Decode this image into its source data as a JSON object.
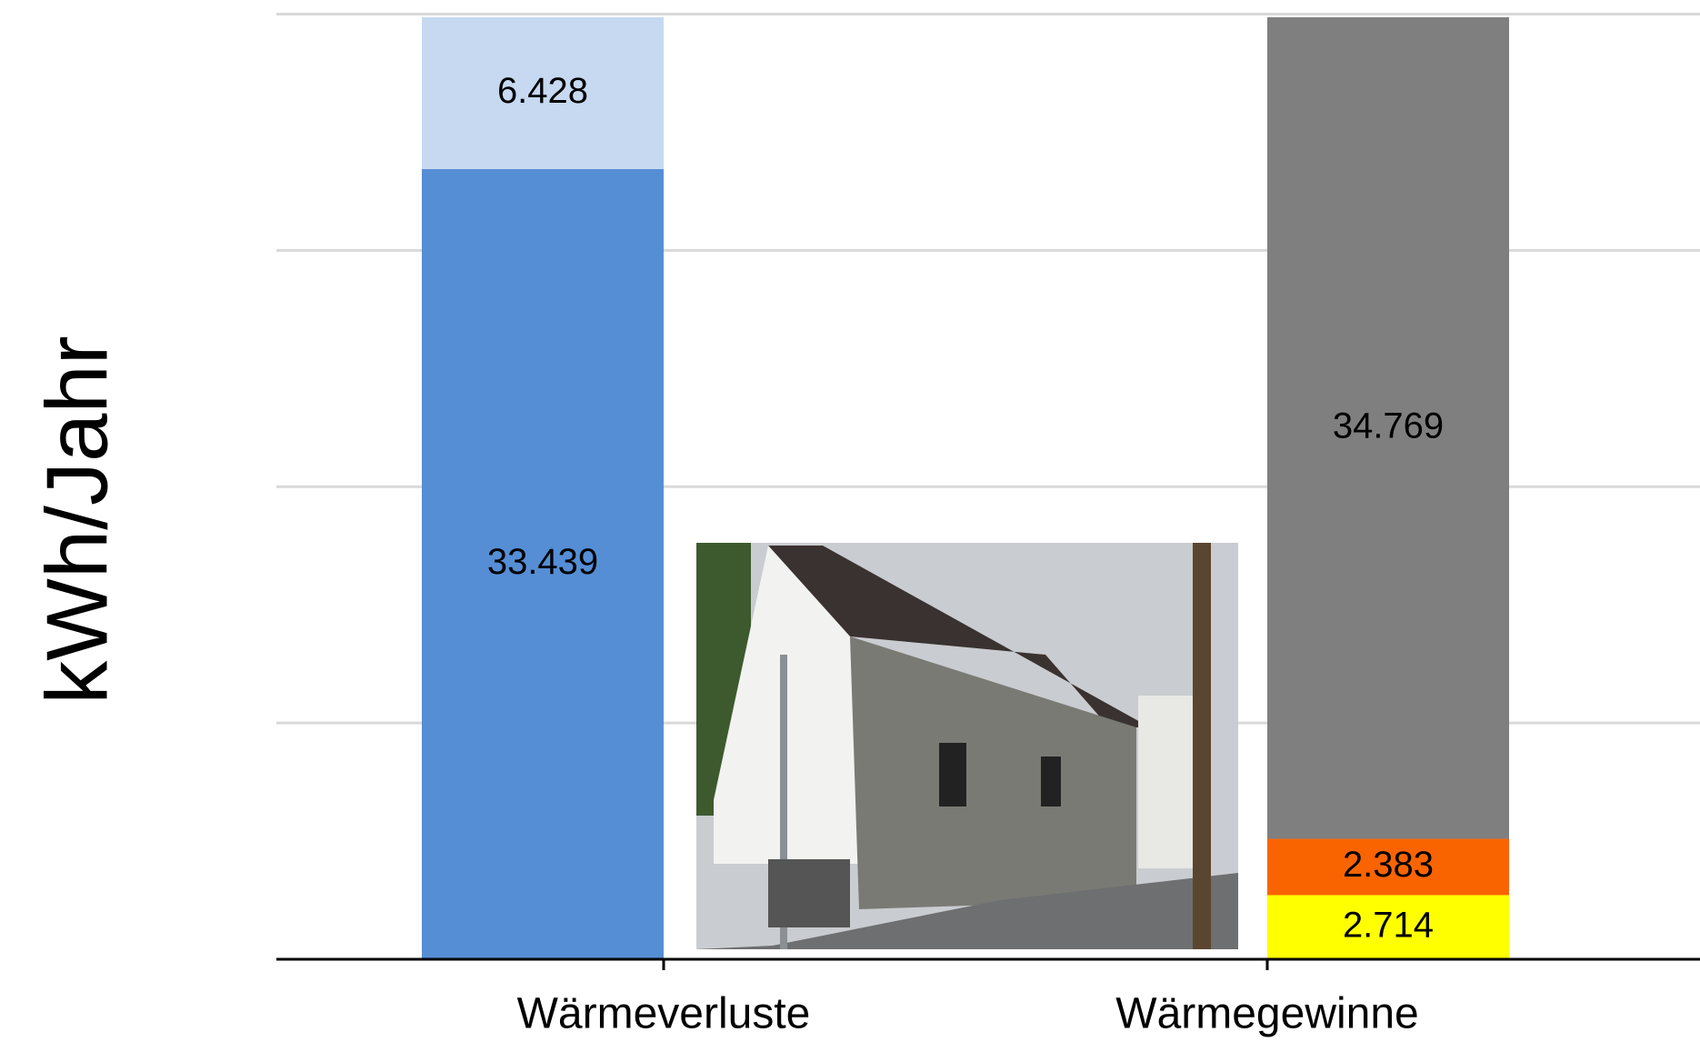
{
  "chart_data": {
    "type": "stacked_bar",
    "y_label": "kWh/Jahr",
    "categories": [
      "Wärmeverluste",
      "Wärmegewinne"
    ],
    "series": [
      {
        "color": "#558ed5",
        "values": [
          33439,
          null
        ],
        "value_labels": [
          "33.439",
          null
        ]
      },
      {
        "color": "#c6d9f1",
        "values": [
          6428,
          null
        ],
        "value_labels": [
          "6.428",
          null
        ]
      },
      {
        "color": "#ffff00",
        "values": [
          null,
          2714
        ],
        "value_labels": [
          null,
          "2.714"
        ]
      },
      {
        "color": "#fa6400",
        "values": [
          null,
          2383
        ],
        "value_labels": [
          null,
          "2.383"
        ]
      },
      {
        "color": "#7f7f7f",
        "values": [
          null,
          34769
        ],
        "value_labels": [
          null,
          "34.769"
        ]
      }
    ],
    "ylim": [
      0,
      40000
    ],
    "yticks": [
      0,
      10000,
      20000,
      30000,
      40000
    ],
    "grid": true
  }
}
